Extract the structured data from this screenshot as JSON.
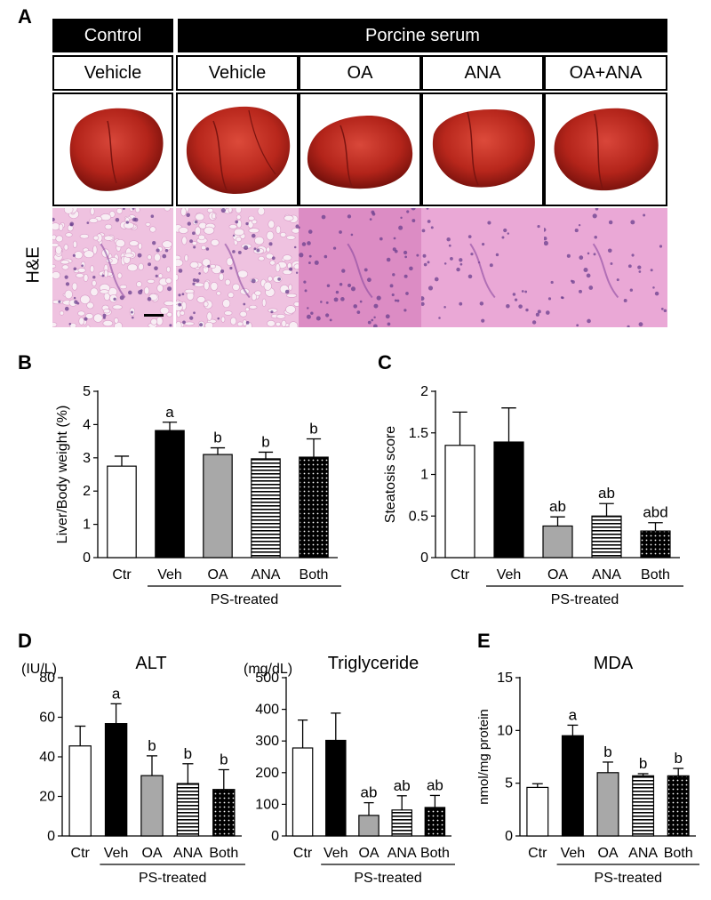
{
  "panel_a": {
    "letter": "A",
    "group_headers": [
      "Control",
      "Porcine serum"
    ],
    "conditions": [
      "Vehicle",
      "Vehicle",
      "OA",
      "ANA",
      "OA+ANA"
    ],
    "stain_label": "H&E",
    "liver_color": "#b3241a",
    "he_color": "#e9a6d2"
  },
  "chart_data": [
    {
      "panel": "B",
      "type": "bar",
      "title": "",
      "ylabel": "Liver/Body weight (%)",
      "unit_label": "",
      "ylim": [
        0,
        5
      ],
      "yticks": [
        "0",
        "1",
        "2",
        "3",
        "4",
        "5"
      ],
      "categories": [
        "Ctr",
        "Veh",
        "OA",
        "ANA",
        "Both"
      ],
      "values": [
        2.75,
        3.82,
        3.1,
        2.97,
        3.02
      ],
      "errors": [
        0.3,
        0.25,
        0.2,
        0.2,
        0.55
      ],
      "annotations": [
        "",
        "a",
        "b",
        "b",
        "b"
      ],
      "fills": [
        "white",
        "black",
        "gray",
        "hlines",
        "dots"
      ],
      "group_label": "PS-treated"
    },
    {
      "panel": "C",
      "type": "bar",
      "title": "",
      "ylabel": "Steatosis score",
      "unit_label": "",
      "ylim": [
        0,
        2
      ],
      "yticks": [
        "0",
        "0.5",
        "1",
        "1.5",
        "2"
      ],
      "categories": [
        "Ctr",
        "Veh",
        "OA",
        "ANA",
        "Both"
      ],
      "values": [
        1.35,
        1.39,
        0.38,
        0.5,
        0.32
      ],
      "errors": [
        0.4,
        0.41,
        0.11,
        0.15,
        0.1
      ],
      "annotations": [
        "",
        "",
        "ab",
        "ab",
        "abd"
      ],
      "fills": [
        "white",
        "black",
        "gray",
        "hlines",
        "dots"
      ],
      "group_label": "PS-treated"
    },
    {
      "panel": "D",
      "type": "bar",
      "title": "ALT",
      "ylabel": "",
      "unit_label": "(IU/L)",
      "ylim": [
        0,
        80
      ],
      "yticks": [
        "0",
        "20",
        "40",
        "60",
        "80"
      ],
      "categories": [
        "Ctr",
        "Veh",
        "OA",
        "ANA",
        "Both"
      ],
      "values": [
        45.5,
        56.8,
        30.5,
        26.5,
        23.5
      ],
      "errors": [
        10.0,
        10.0,
        10.0,
        10.0,
        10.0
      ],
      "annotations": [
        "",
        "a",
        "b",
        "b",
        "b"
      ],
      "fills": [
        "white",
        "black",
        "gray",
        "hlines",
        "dots"
      ],
      "group_label": "PS-treated"
    },
    {
      "panel": "",
      "type": "bar",
      "title": "Triglyceride",
      "ylabel": "",
      "unit_label": "(mg/dL)",
      "ylim": [
        0,
        500
      ],
      "yticks": [
        "0",
        "100",
        "200",
        "300",
        "400",
        "500"
      ],
      "categories": [
        "Ctr",
        "Veh",
        "OA",
        "ANA",
        "Both"
      ],
      "values": [
        278,
        302,
        65,
        82,
        90
      ],
      "errors": [
        88,
        86,
        40,
        45,
        38
      ],
      "annotations": [
        "",
        "",
        "ab",
        "ab",
        "ab"
      ],
      "fills": [
        "white",
        "black",
        "gray",
        "hlines",
        "dots"
      ],
      "group_label": "PS-treated"
    },
    {
      "panel": "E",
      "type": "bar",
      "title": "MDA",
      "ylabel": "nmol/mg protein",
      "unit_label": "",
      "ylim": [
        0,
        15
      ],
      "yticks": [
        "0",
        "5",
        "10",
        "15"
      ],
      "categories": [
        "Ctr",
        "Veh",
        "OA",
        "ANA",
        "Both"
      ],
      "values": [
        4.6,
        9.5,
        6.0,
        5.7,
        5.7
      ],
      "errors": [
        0.35,
        1.0,
        1.0,
        0.2,
        0.7
      ],
      "annotations": [
        "",
        "a",
        "b",
        "b",
        "b"
      ],
      "fills": [
        "white",
        "black",
        "gray",
        "hlines",
        "dots"
      ],
      "group_label": "PS-treated"
    }
  ]
}
